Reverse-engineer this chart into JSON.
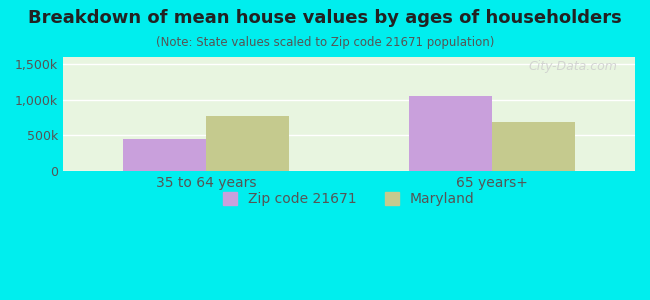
{
  "title": "Breakdown of mean house values by ages of householders",
  "subtitle": "(Note: State values scaled to Zip code 21671 population)",
  "categories": [
    "35 to 64 years",
    "65 years+"
  ],
  "zip_values": [
    450000,
    1050000
  ],
  "state_values": [
    775000,
    690000
  ],
  "zip_color": "#c9a0dc",
  "state_color": "#c5ca8e",
  "background_outer": "#00eeee",
  "background_inner": "#e8f5e0",
  "ylim": [
    0,
    1600000
  ],
  "yticks": [
    0,
    500000,
    1000000,
    1500000
  ],
  "ytick_labels": [
    "0",
    "500k",
    "1,000k",
    "1,500k"
  ],
  "legend_zip_label": "Zip code 21671",
  "legend_state_label": "Maryland",
  "bar_width": 0.35,
  "group_positions": [
    1.0,
    2.2
  ],
  "watermark": "City-Data.com"
}
